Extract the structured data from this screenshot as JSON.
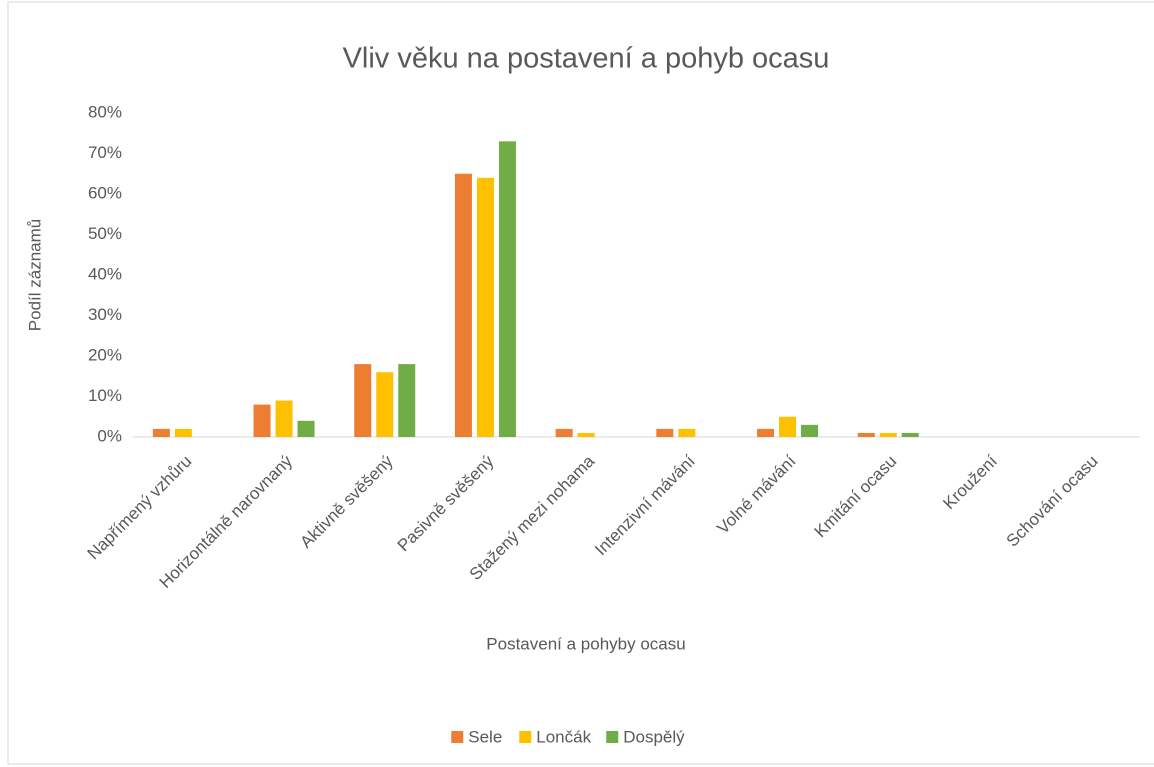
{
  "chart_data": {
    "type": "bar",
    "title": "Vliv věku na postavení a pohyb ocasu",
    "x_label": "Postavení a pohyby ocasu",
    "y_label": "Podíl záznamů",
    "categories": [
      "Napřímený vzhůru",
      "Horizontálně narovnaný",
      "Aktivně svěšený",
      "Pasivně svěšený",
      "Stažený mezi nohama",
      "Intenzivní mávání",
      "Volné mávání",
      "Kmitání ocasu",
      "Kroužení",
      "Schování ocasu"
    ],
    "series": [
      {
        "name": "Sele",
        "color": "#ed7d31",
        "values": [
          2,
          8,
          18,
          65,
          2,
          2,
          2,
          1,
          0,
          0
        ]
      },
      {
        "name": "Lončák",
        "color": "#ffc000",
        "values": [
          2,
          9,
          16,
          64,
          1,
          2,
          5,
          1,
          0,
          0
        ]
      },
      {
        "name": "Dospělý",
        "color": "#70ad47",
        "values": [
          0,
          4,
          18,
          73,
          0,
          0,
          3,
          1,
          0,
          0
        ]
      }
    ],
    "ylim": [
      0,
      80
    ],
    "yticks": [
      {
        "value": 0,
        "label": "0%"
      },
      {
        "value": 10,
        "label": "10%"
      },
      {
        "value": 20,
        "label": "20%"
      },
      {
        "value": 30,
        "label": "30%"
      },
      {
        "value": 40,
        "label": "40%"
      },
      {
        "value": 50,
        "label": "50%"
      },
      {
        "value": 60,
        "label": "60%"
      },
      {
        "value": 70,
        "label": "70%"
      },
      {
        "value": 80,
        "label": "80%"
      }
    ],
    "grid": false,
    "legend": "bottom"
  }
}
